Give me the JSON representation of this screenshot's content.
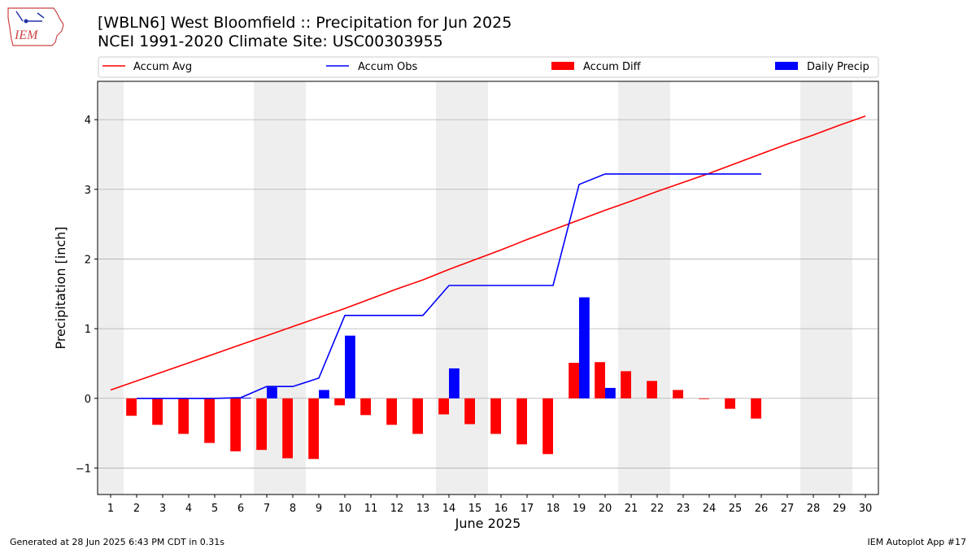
{
  "header": {
    "title_line1": "[WBLN6] West Bloomfield :: Precipitation for Jun 2025",
    "title_line2": "NCEI 1991-2020 Climate Site: USC00303955"
  },
  "logo": {
    "text": "IEM"
  },
  "footer": {
    "left": "Generated at 28 Jun 2025 6:43 PM CDT in 0.31s",
    "right": "IEM Autoplot App #17"
  },
  "colors": {
    "avg": "#ff0000",
    "obs": "#0000ff",
    "diff": "#ff0000",
    "daily": "#0000ff",
    "weekend": "#eeeeee",
    "grid": "#b0b0b0"
  },
  "chart_data": {
    "type": "bar+line",
    "xlabel": "June 2025",
    "ylabel": "Precipitation [inch]",
    "xlim": [
      0.5,
      30.5
    ],
    "ylim": [
      -1.38,
      4.55
    ],
    "yticks": [
      -1,
      0,
      1,
      2,
      3,
      4
    ],
    "ytick_labels": [
      "−1",
      "0",
      "1",
      "2",
      "3",
      "4"
    ],
    "days": [
      1,
      2,
      3,
      4,
      5,
      6,
      7,
      8,
      9,
      10,
      11,
      12,
      13,
      14,
      15,
      16,
      17,
      18,
      19,
      20,
      21,
      22,
      23,
      24,
      25,
      26,
      27,
      28,
      29,
      30
    ],
    "weekend_shading": [
      [
        0.5,
        1.5
      ],
      [
        6.5,
        8.5
      ],
      [
        13.5,
        15.5
      ],
      [
        20.5,
        22.5
      ],
      [
        27.5,
        29.5
      ]
    ],
    "grid": true,
    "legend_position": "top, above plot",
    "series": [
      {
        "name": "Accum Avg",
        "type": "line",
        "x": [
          1,
          2,
          3,
          4,
          5,
          6,
          7,
          8,
          9,
          10,
          11,
          12,
          13,
          14,
          15,
          16,
          17,
          18,
          19,
          20,
          21,
          22,
          23,
          24,
          25,
          26,
          27,
          28,
          29,
          30
        ],
        "values": [
          0.12,
          0.25,
          0.38,
          0.51,
          0.64,
          0.77,
          0.9,
          1.03,
          1.16,
          1.29,
          1.43,
          1.57,
          1.7,
          1.85,
          1.99,
          2.13,
          2.28,
          2.42,
          2.56,
          2.7,
          2.83,
          2.97,
          3.1,
          3.23,
          3.37,
          3.51,
          3.65,
          3.78,
          3.92,
          4.05
        ]
      },
      {
        "name": "Accum Obs",
        "type": "line",
        "x": [
          2,
          3,
          4,
          5,
          6,
          7,
          8,
          9,
          10,
          11,
          12,
          13,
          14,
          15,
          16,
          17,
          18,
          19,
          20,
          21,
          22,
          23,
          24,
          25,
          26
        ],
        "values": [
          0.0,
          0.0,
          0.0,
          0.0,
          0.01,
          0.17,
          0.17,
          0.29,
          1.19,
          1.19,
          1.19,
          1.19,
          1.62,
          1.62,
          1.62,
          1.62,
          1.62,
          3.07,
          3.22,
          3.22,
          3.22,
          3.22,
          3.22,
          3.22,
          3.22
        ]
      },
      {
        "name": "Accum Diff",
        "type": "bar",
        "x": [
          2,
          3,
          4,
          5,
          6,
          7,
          8,
          9,
          10,
          11,
          12,
          13,
          14,
          15,
          16,
          17,
          18,
          19,
          20,
          21,
          22,
          23,
          24,
          25,
          26
        ],
        "values": [
          -0.25,
          -0.38,
          -0.51,
          -0.64,
          -0.76,
          -0.74,
          -0.86,
          -0.87,
          -0.1,
          -0.24,
          -0.38,
          -0.51,
          -0.23,
          -0.37,
          -0.51,
          -0.66,
          -0.8,
          0.51,
          0.52,
          0.39,
          0.25,
          0.12,
          -0.01,
          -0.15,
          -0.29
        ]
      },
      {
        "name": "Daily Precip",
        "type": "bar",
        "x": [
          2,
          3,
          4,
          5,
          6,
          7,
          8,
          9,
          10,
          11,
          12,
          13,
          14,
          15,
          16,
          17,
          18,
          19,
          20,
          21,
          22,
          23,
          24,
          25,
          26
        ],
        "values": [
          0,
          0,
          0,
          0,
          0.01,
          0.16,
          0,
          0.12,
          0.9,
          0,
          0,
          0,
          0.43,
          0,
          0,
          0,
          0,
          1.45,
          0.15,
          0,
          0,
          0,
          0,
          0,
          0
        ]
      }
    ]
  }
}
